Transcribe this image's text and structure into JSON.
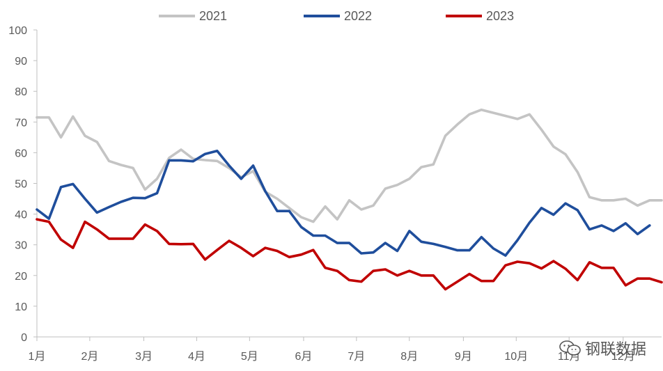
{
  "chart_data": {
    "type": "line",
    "title": "",
    "xlabel": "",
    "ylabel": "",
    "ylim": [
      0,
      100
    ],
    "yticks": [
      0,
      10,
      20,
      30,
      40,
      50,
      60,
      70,
      80,
      90,
      100
    ],
    "x_count": 52,
    "month_labels": [
      "1月",
      "2月",
      "3月",
      "4月",
      "5月",
      "6月",
      "7月",
      "8月",
      "9月",
      "10月",
      "11月",
      "12月"
    ],
    "month_weeks": [
      0,
      4.4,
      8.9,
      13.3,
      17.7,
      22.2,
      26.6,
      31.0,
      35.5,
      39.9,
      44.3,
      48.8
    ],
    "legend_position": "top",
    "series": [
      {
        "name": "2021",
        "color": "#c4c4c4",
        "values": [
          71.5,
          71.5,
          65,
          71.8,
          65.5,
          63.5,
          57.3,
          56,
          55,
          48,
          51.5,
          58.3,
          61,
          58,
          57.6,
          57.3,
          55,
          52,
          54,
          47.3,
          45,
          42,
          39,
          37.5,
          42.5,
          38.3,
          44.5,
          41.5,
          42.8,
          48.3,
          49.5,
          51.5,
          55.3,
          56.2,
          65.5,
          69.2,
          72.5,
          74,
          73,
          72,
          71,
          72.5,
          67.5,
          62,
          59.5,
          53.7,
          45.5,
          44.5,
          44.5,
          45,
          42.8,
          44.5,
          44.5
        ]
      },
      {
        "name": "2022",
        "color": "#1f4e9c",
        "values": [
          41.5,
          38.5,
          48.8,
          49.8,
          45,
          40.5,
          42.3,
          44,
          45.3,
          45.2,
          46.8,
          57.5,
          57.5,
          57.2,
          59.6,
          60.6,
          55.8,
          51.5,
          55.8,
          47.5,
          41,
          41,
          35.8,
          33,
          33,
          30.6,
          30.6,
          27.2,
          27.5,
          30.6,
          28,
          34.5,
          31,
          30.3,
          29.3,
          28.2,
          28.2,
          32.5,
          28.8,
          26.5,
          31.5,
          37.2,
          42,
          39.8,
          43.5,
          41.3,
          35,
          36.3,
          34.5,
          37,
          33.5,
          36.3
        ]
      },
      {
        "name": "2023",
        "color": "#c00000",
        "values": [
          38.3,
          37.5,
          31.7,
          29,
          37.5,
          35,
          32,
          32,
          32,
          36.6,
          34.5,
          30.3,
          30.2,
          30.3,
          25.2,
          28.3,
          31.3,
          29,
          26.3,
          29,
          28,
          26,
          26.8,
          28.3,
          22.5,
          21.5,
          18.5,
          18,
          21.5,
          22,
          20,
          21.5,
          20,
          20,
          15.5,
          18,
          20.5,
          18.2,
          18.2,
          23.3,
          24.5,
          24,
          22.3,
          24.7,
          22.2,
          18.5,
          24.3,
          22.5,
          22.5,
          16.8,
          19,
          19,
          17.8
        ]
      }
    ]
  },
  "watermark": {
    "text": "钢联数据",
    "icon": "wechat-icon"
  }
}
